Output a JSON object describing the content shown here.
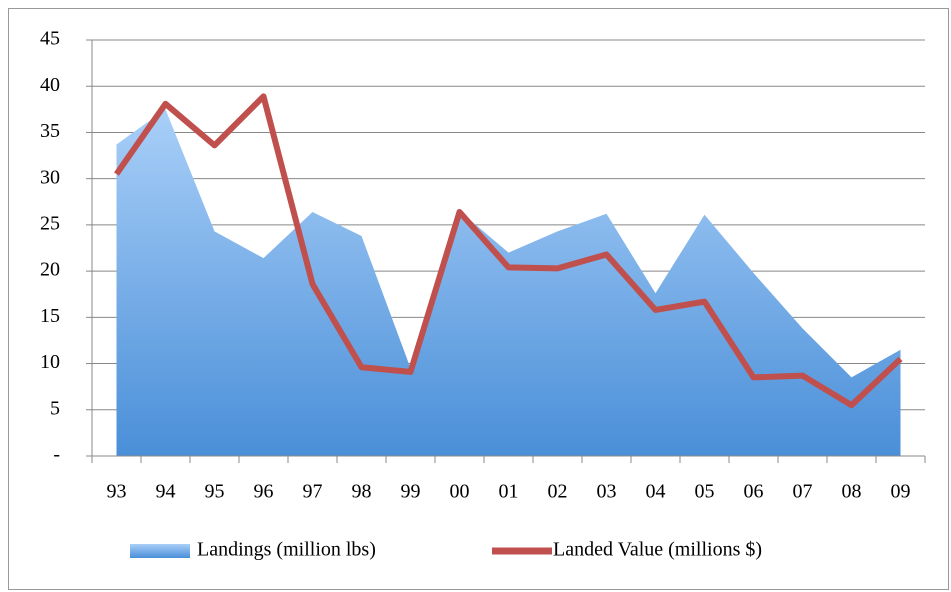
{
  "chart_data": {
    "type": "combo",
    "categories": [
      "93",
      "94",
      "95",
      "96",
      "97",
      "98",
      "99",
      "00",
      "01",
      "02",
      "03",
      "04",
      "05",
      "06",
      "07",
      "08",
      "09"
    ],
    "series": [
      {
        "name": "Landings (million lbs)",
        "type": "area",
        "color": "#5b9bd5",
        "values": [
          33.7,
          37.5,
          24.3,
          21.4,
          26.4,
          23.8,
          9.5,
          26.5,
          22.0,
          24.3,
          26.2,
          17.6,
          26.1,
          19.8,
          13.8,
          8.5,
          11.5
        ]
      },
      {
        "name": "Landed Value (millions $)",
        "type": "line",
        "color": "#c0504d",
        "values": [
          30.5,
          38.1,
          33.6,
          38.9,
          18.6,
          9.6,
          9.1,
          26.4,
          20.4,
          20.3,
          21.8,
          15.8,
          16.7,
          8.5,
          8.7,
          5.5,
          10.5
        ]
      }
    ],
    "ylim": [
      0,
      45
    ],
    "yticks": [
      {
        "value": 0,
        "label": "-"
      },
      5,
      10,
      15,
      20,
      25,
      30,
      35,
      40,
      45
    ],
    "grid": true,
    "legend": "bottom"
  }
}
